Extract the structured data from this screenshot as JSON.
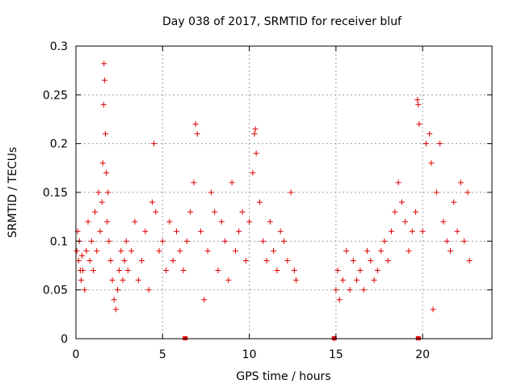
{
  "chart_data": {
    "type": "scatter",
    "title": "Day 038 of 2017, SRMTID for receiver bluf",
    "xlabel": "GPS time / hours",
    "ylabel": "SRMTID / TECUs",
    "xlim": [
      0,
      24
    ],
    "ylim": [
      0,
      0.3
    ],
    "xticks": [
      0,
      5,
      10,
      15,
      20
    ],
    "xtick_labels": [
      "0",
      "5",
      "10",
      "15",
      "20"
    ],
    "yticks": [
      0,
      0.05,
      0.1,
      0.15,
      0.2,
      0.25,
      0.3
    ],
    "ytick_labels": [
      "0",
      "0.05",
      "0.1",
      "0.15",
      "0.2",
      "0.25",
      "0.3"
    ],
    "grid": true,
    "marker": "+",
    "color": "#e00000",
    "series": [
      {
        "name": "SRMTID",
        "x": [
          0.05,
          0.1,
          0.15,
          0.2,
          0.25,
          0.3,
          0.35,
          0.4,
          0.5,
          0.6,
          0.7,
          0.8,
          0.9,
          1.0,
          1.1,
          1.2,
          1.3,
          1.4,
          1.5,
          1.55,
          1.6,
          1.62,
          1.65,
          1.7,
          1.75,
          1.8,
          1.85,
          1.9,
          2.0,
          2.1,
          2.2,
          2.3,
          2.4,
          2.5,
          2.6,
          2.7,
          2.8,
          2.9,
          3.0,
          3.2,
          3.4,
          3.6,
          3.8,
          4.0,
          4.2,
          4.4,
          4.5,
          4.6,
          4.8,
          5.0,
          5.2,
          5.4,
          5.6,
          5.8,
          6.0,
          6.2,
          6.4,
          6.6,
          6.8,
          6.9,
          7.0,
          7.2,
          7.4,
          7.6,
          7.8,
          8.0,
          8.2,
          8.4,
          8.6,
          8.8,
          9.0,
          9.2,
          9.4,
          9.6,
          9.8,
          10.0,
          10.2,
          10.3,
          10.35,
          10.4,
          10.6,
          10.8,
          11.0,
          11.2,
          11.4,
          11.6,
          11.8,
          12.0,
          12.2,
          12.4,
          12.6,
          12.7,
          14.9,
          15.0,
          15.1,
          15.2,
          15.4,
          15.6,
          15.8,
          16.0,
          16.2,
          16.4,
          16.6,
          16.8,
          17.0,
          17.2,
          17.4,
          17.6,
          17.8,
          18.0,
          18.2,
          18.4,
          18.6,
          18.8,
          19.0,
          19.2,
          19.4,
          19.6,
          19.7,
          19.75,
          19.8,
          20.0,
          20.2,
          20.4,
          20.5,
          20.6,
          20.8,
          21.0,
          21.2,
          21.4,
          21.6,
          21.8,
          22.0,
          22.2,
          22.4,
          22.6,
          22.7
        ],
        "y": [
          0.09,
          0.11,
          0.08,
          0.1,
          0.07,
          0.06,
          0.085,
          0.07,
          0.05,
          0.09,
          0.12,
          0.08,
          0.1,
          0.07,
          0.13,
          0.09,
          0.15,
          0.11,
          0.14,
          0.18,
          0.24,
          0.282,
          0.265,
          0.21,
          0.17,
          0.12,
          0.15,
          0.1,
          0.08,
          0.06,
          0.04,
          0.03,
          0.05,
          0.07,
          0.09,
          0.06,
          0.08,
          0.1,
          0.07,
          0.09,
          0.12,
          0.06,
          0.08,
          0.11,
          0.05,
          0.14,
          0.2,
          0.13,
          0.09,
          0.1,
          0.07,
          0.12,
          0.08,
          0.11,
          0.09,
          0.07,
          0.1,
          0.13,
          0.16,
          0.22,
          0.21,
          0.11,
          0.04,
          0.09,
          0.15,
          0.13,
          0.07,
          0.12,
          0.1,
          0.06,
          0.16,
          0.09,
          0.11,
          0.13,
          0.08,
          0.12,
          0.17,
          0.21,
          0.215,
          0.19,
          0.14,
          0.1,
          0.08,
          0.12,
          0.09,
          0.07,
          0.11,
          0.1,
          0.08,
          0.15,
          0.07,
          0.06,
          0.0,
          0.05,
          0.07,
          0.04,
          0.06,
          0.09,
          0.05,
          0.08,
          0.06,
          0.07,
          0.05,
          0.09,
          0.08,
          0.06,
          0.07,
          0.09,
          0.1,
          0.08,
          0.11,
          0.13,
          0.16,
          0.14,
          0.12,
          0.09,
          0.11,
          0.13,
          0.245,
          0.24,
          0.22,
          0.11,
          0.2,
          0.21,
          0.18,
          0.03,
          0.15,
          0.2,
          0.12,
          0.1,
          0.09,
          0.14,
          0.11,
          0.16,
          0.1,
          0.15,
          0.08
        ]
      }
    ],
    "zero_markers_x": [
      6.3,
      14.9,
      19.75
    ]
  }
}
